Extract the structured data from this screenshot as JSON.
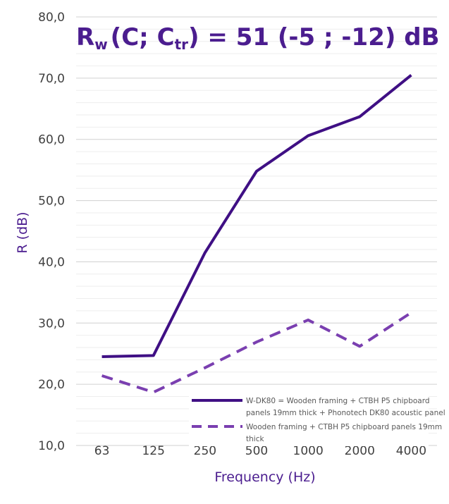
{
  "chart_data": {
    "type": "line",
    "title": {
      "r": "R",
      "w": "w",
      "c_open": "(C; C",
      "tr": "tr",
      "rest": ") = 51 (-5 ; -12) dB"
    },
    "xlabel": "Frequency (Hz)",
    "ylabel": "R (dB)",
    "ylim": [
      10,
      80
    ],
    "y_ticks": [
      "10,0",
      "20,0",
      "30,0",
      "40,0",
      "50,0",
      "60,0",
      "70,0",
      "80,0"
    ],
    "categories": [
      "63",
      "125",
      "250",
      "500",
      "1000",
      "2000",
      "4000"
    ],
    "grid": true,
    "legend_position": "bottom-right",
    "series": [
      {
        "name_lines": [
          "W-DK80 = Wooden framing + CTBH P5 chipboard",
          "panels 19mm thick + Phonotech DK80 acoustic panel"
        ],
        "values": [
          24.5,
          24.7,
          41.5,
          54.8,
          60.6,
          63.7,
          70.5
        ],
        "color": "#3f0f84",
        "style": "solid"
      },
      {
        "name_lines": [
          "Wooden framing + CTBH P5 chipboard panels 19mm",
          "thick"
        ],
        "values": [
          21.4,
          18.7,
          22.7,
          26.9,
          30.5,
          26.2,
          31.7
        ],
        "color": "#7a3fb0",
        "style": "dashed"
      }
    ]
  }
}
